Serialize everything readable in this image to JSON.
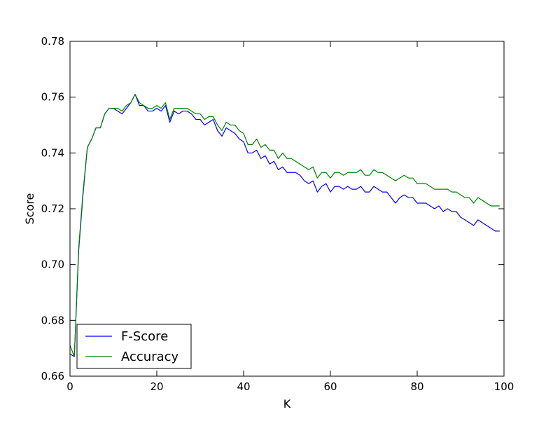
{
  "chart_data": {
    "type": "line",
    "title": "",
    "xlabel": "K",
    "ylabel": "Score",
    "xlim": [
      0,
      100
    ],
    "ylim": [
      0.66,
      0.78
    ],
    "xticks": [
      0,
      20,
      40,
      60,
      80,
      100
    ],
    "xtick_labels": [
      "0",
      "20",
      "40",
      "60",
      "80",
      "100"
    ],
    "yticks": [
      0.66,
      0.68,
      0.7,
      0.72,
      0.74,
      0.76,
      0.78
    ],
    "ytick_labels": [
      "0.66",
      "0.68",
      "0.70",
      "0.72",
      "0.74",
      "0.76",
      "0.78"
    ],
    "grid": false,
    "legend_position": "lower-left",
    "series": [
      {
        "name": "F-Score",
        "color": "#0000ff",
        "x": [
          0,
          1,
          2,
          3,
          4,
          5,
          6,
          7,
          8,
          9,
          10,
          11,
          12,
          13,
          14,
          15,
          16,
          17,
          18,
          19,
          20,
          21,
          22,
          23,
          24,
          25,
          26,
          27,
          28,
          29,
          30,
          31,
          32,
          33,
          34,
          35,
          36,
          37,
          38,
          39,
          40,
          41,
          42,
          43,
          44,
          45,
          46,
          47,
          48,
          49,
          50,
          51,
          52,
          53,
          54,
          55,
          56,
          57,
          58,
          59,
          60,
          61,
          62,
          63,
          64,
          65,
          66,
          67,
          68,
          69,
          70,
          71,
          72,
          73,
          74,
          75,
          76,
          77,
          78,
          79,
          80,
          81,
          82,
          83,
          84,
          85,
          86,
          87,
          88,
          89,
          90,
          91,
          92,
          93,
          94,
          95,
          96,
          97,
          98,
          99
        ],
        "values": [
          0.668,
          0.667,
          0.705,
          0.725,
          0.742,
          0.745,
          0.749,
          0.749,
          0.754,
          0.756,
          0.756,
          0.755,
          0.754,
          0.756,
          0.758,
          0.761,
          0.757,
          0.757,
          0.755,
          0.755,
          0.756,
          0.755,
          0.757,
          0.751,
          0.755,
          0.754,
          0.755,
          0.755,
          0.754,
          0.752,
          0.752,
          0.75,
          0.751,
          0.752,
          0.748,
          0.746,
          0.749,
          0.748,
          0.747,
          0.745,
          0.744,
          0.74,
          0.74,
          0.741,
          0.738,
          0.739,
          0.736,
          0.737,
          0.734,
          0.735,
          0.733,
          0.733,
          0.733,
          0.732,
          0.73,
          0.729,
          0.73,
          0.726,
          0.728,
          0.729,
          0.726,
          0.728,
          0.728,
          0.727,
          0.728,
          0.727,
          0.727,
          0.728,
          0.726,
          0.726,
          0.728,
          0.727,
          0.726,
          0.726,
          0.724,
          0.722,
          0.724,
          0.725,
          0.724,
          0.724,
          0.722,
          0.722,
          0.722,
          0.721,
          0.72,
          0.721,
          0.719,
          0.72,
          0.719,
          0.719,
          0.717,
          0.716,
          0.715,
          0.714,
          0.716,
          0.715,
          0.714,
          0.713,
          0.712,
          0.712
        ]
      },
      {
        "name": "Accuracy",
        "color": "#008000",
        "x": [
          0,
          1,
          2,
          3,
          4,
          5,
          6,
          7,
          8,
          9,
          10,
          11,
          12,
          13,
          14,
          15,
          16,
          17,
          18,
          19,
          20,
          21,
          22,
          23,
          24,
          25,
          26,
          27,
          28,
          29,
          30,
          31,
          32,
          33,
          34,
          35,
          36,
          37,
          38,
          39,
          40,
          41,
          42,
          43,
          44,
          45,
          46,
          47,
          48,
          49,
          50,
          51,
          52,
          53,
          54,
          55,
          56,
          57,
          58,
          59,
          60,
          61,
          62,
          63,
          64,
          65,
          66,
          67,
          68,
          69,
          70,
          71,
          72,
          73,
          74,
          75,
          76,
          77,
          78,
          79,
          80,
          81,
          82,
          83,
          84,
          85,
          86,
          87,
          88,
          89,
          90,
          91,
          92,
          93,
          94,
          95,
          96,
          97,
          98,
          99
        ],
        "values": [
          0.671,
          0.667,
          0.706,
          0.726,
          0.742,
          0.745,
          0.749,
          0.749,
          0.754,
          0.756,
          0.756,
          0.756,
          0.755,
          0.757,
          0.758,
          0.761,
          0.758,
          0.757,
          0.756,
          0.756,
          0.757,
          0.756,
          0.758,
          0.752,
          0.756,
          0.756,
          0.756,
          0.756,
          0.755,
          0.754,
          0.754,
          0.752,
          0.753,
          0.753,
          0.75,
          0.748,
          0.751,
          0.75,
          0.75,
          0.748,
          0.747,
          0.743,
          0.743,
          0.745,
          0.742,
          0.743,
          0.741,
          0.741,
          0.738,
          0.74,
          0.738,
          0.738,
          0.737,
          0.736,
          0.735,
          0.734,
          0.735,
          0.731,
          0.733,
          0.733,
          0.731,
          0.733,
          0.733,
          0.732,
          0.733,
          0.733,
          0.733,
          0.734,
          0.732,
          0.732,
          0.734,
          0.733,
          0.733,
          0.732,
          0.731,
          0.73,
          0.731,
          0.732,
          0.731,
          0.731,
          0.729,
          0.729,
          0.729,
          0.728,
          0.727,
          0.727,
          0.727,
          0.727,
          0.726,
          0.726,
          0.725,
          0.724,
          0.724,
          0.722,
          0.724,
          0.723,
          0.722,
          0.721,
          0.721,
          0.721
        ]
      }
    ]
  }
}
